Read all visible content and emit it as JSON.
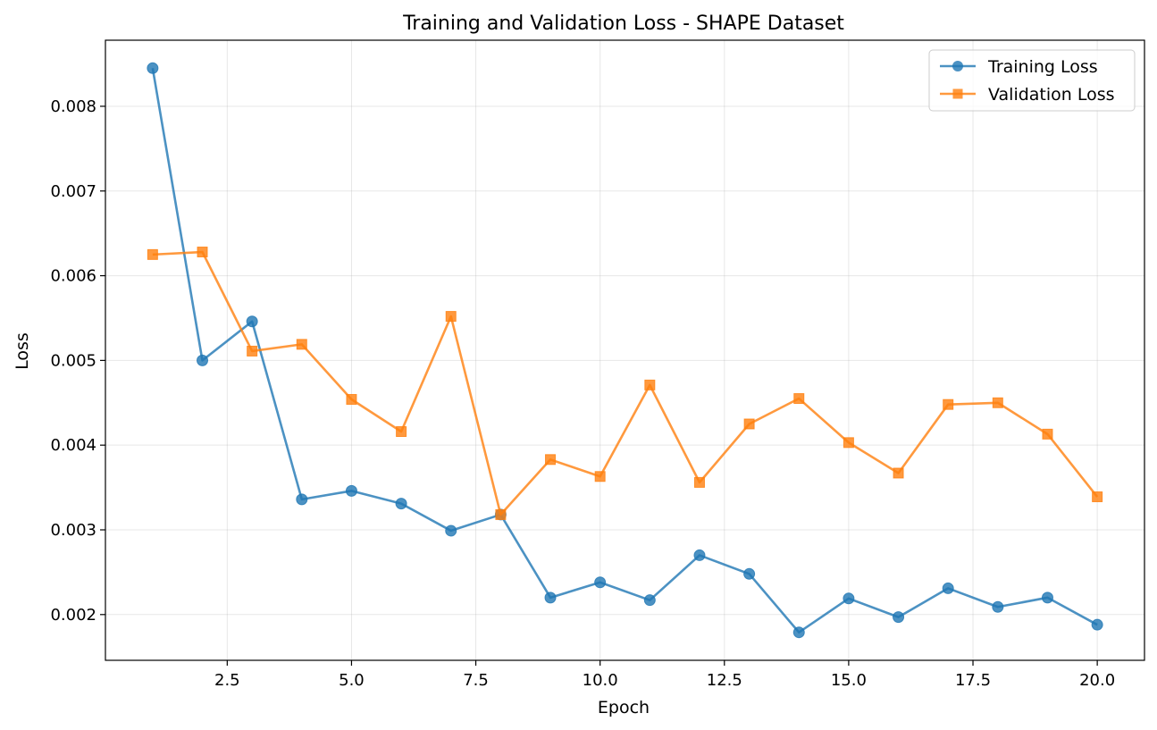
{
  "chart_data": {
    "type": "line",
    "title": "Training and Validation Loss - SHAPE Dataset",
    "xlabel": "Epoch",
    "ylabel": "Loss",
    "xlim": [
      0.05,
      20.95
    ],
    "ylim": [
      0.00146,
      0.00878
    ],
    "xticks": [
      2.5,
      5.0,
      7.5,
      10.0,
      12.5,
      15.0,
      17.5,
      20.0
    ],
    "xtick_labels": [
      "2.5",
      "5.0",
      "7.5",
      "10.0",
      "12.5",
      "15.0",
      "17.5",
      "20.0"
    ],
    "yticks": [
      0.002,
      0.003,
      0.004,
      0.005,
      0.006,
      0.007,
      0.008
    ],
    "ytick_labels": [
      "0.002",
      "0.003",
      "0.004",
      "0.005",
      "0.006",
      "0.007",
      "0.008"
    ],
    "grid": true,
    "legend_position": "top-right",
    "x": [
      1,
      2,
      3,
      4,
      5,
      6,
      7,
      8,
      9,
      10,
      11,
      12,
      13,
      14,
      15,
      16,
      17,
      18,
      19,
      20
    ],
    "series": [
      {
        "name": "Training Loss",
        "marker": "circle",
        "color": "#1f77b4",
        "values": [
          0.00845,
          0.005,
          0.00546,
          0.00336,
          0.00346,
          0.00331,
          0.00299,
          0.00318,
          0.0022,
          0.00238,
          0.00217,
          0.0027,
          0.00248,
          0.00179,
          0.00219,
          0.00197,
          0.00231,
          0.00209,
          0.0022,
          0.00188
        ]
      },
      {
        "name": "Validation Loss",
        "marker": "square",
        "color": "#ff7f0e",
        "values": [
          0.00625,
          0.00628,
          0.00511,
          0.00519,
          0.00454,
          0.00416,
          0.00552,
          0.00318,
          0.00383,
          0.00363,
          0.00471,
          0.00356,
          0.00425,
          0.00455,
          0.00403,
          0.00367,
          0.00448,
          0.0045,
          0.00413,
          0.00339
        ]
      }
    ]
  }
}
